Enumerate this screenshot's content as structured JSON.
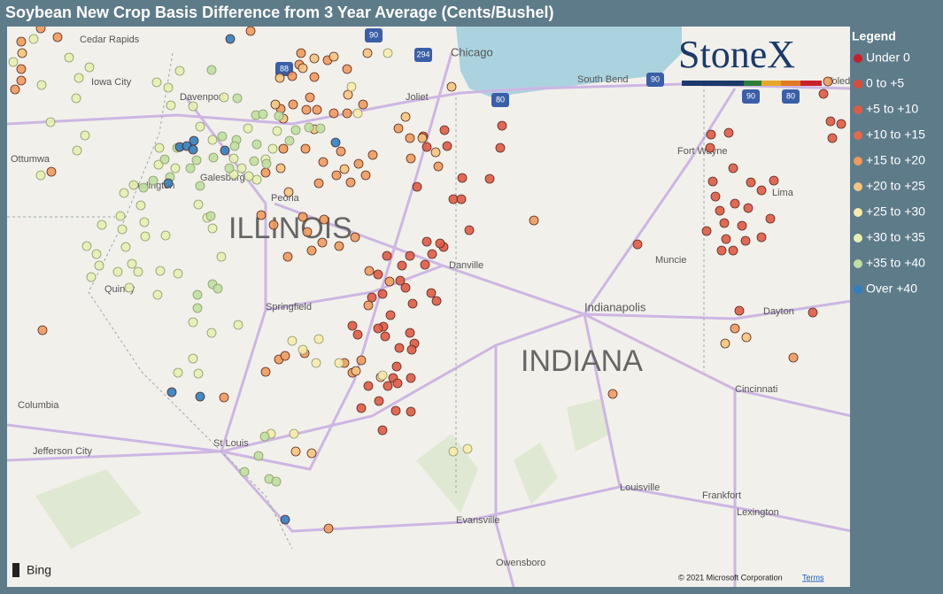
{
  "header": {
    "title": "Soybean New Crop Basis Difference from 3 Year Average (Cents/Bushel)"
  },
  "legend": {
    "title": "Legend",
    "items": [
      {
        "label": "Under 0",
        "color": "#c8202a"
      },
      {
        "label": "0 to +5",
        "color": "#dd4a36"
      },
      {
        "label": "+5 to +10",
        "color": "#e05a44"
      },
      {
        "label": "+10 to +15",
        "color": "#e36a48"
      },
      {
        "label": "+15 to +20",
        "color": "#ef9a5c"
      },
      {
        "label": "+20 to +25",
        "color": "#f6c47e"
      },
      {
        "label": "+25 to +30",
        "color": "#fbeaaa"
      },
      {
        "label": "+30 to +35",
        "color": "#e6f0b0"
      },
      {
        "label": "+35 to +40",
        "color": "#bfe0a0"
      },
      {
        "label": "Over +40",
        "color": "#2f7fc1"
      }
    ]
  },
  "map": {
    "labels": [
      "Cedar Rapids",
      "Iowa City",
      "Davenport",
      "Ottumwa",
      "Burlington",
      "Galesburg",
      "Peoria",
      "ILLINOIS",
      "Quincy",
      "Springfield",
      "Columbia",
      "Jefferson City",
      "St Louis",
      "Chicago",
      "Joliet",
      "South Bend",
      "Fort Wayne",
      "Lima",
      "Danville",
      "Muncie",
      "Indianapolis",
      "Dayton",
      "INDIANA",
      "Cincinnati",
      "Evansville",
      "Louisville",
      "Frankfort",
      "Lexington",
      "Owensboro",
      "Toledo"
    ],
    "shields": [
      "90",
      "294",
      "88",
      "80",
      "90",
      "90",
      "80"
    ],
    "logo": "StoneX",
    "provider": "Bing",
    "copyright": "© 2021 Microsoft Corporation",
    "terms": "Terms"
  }
}
